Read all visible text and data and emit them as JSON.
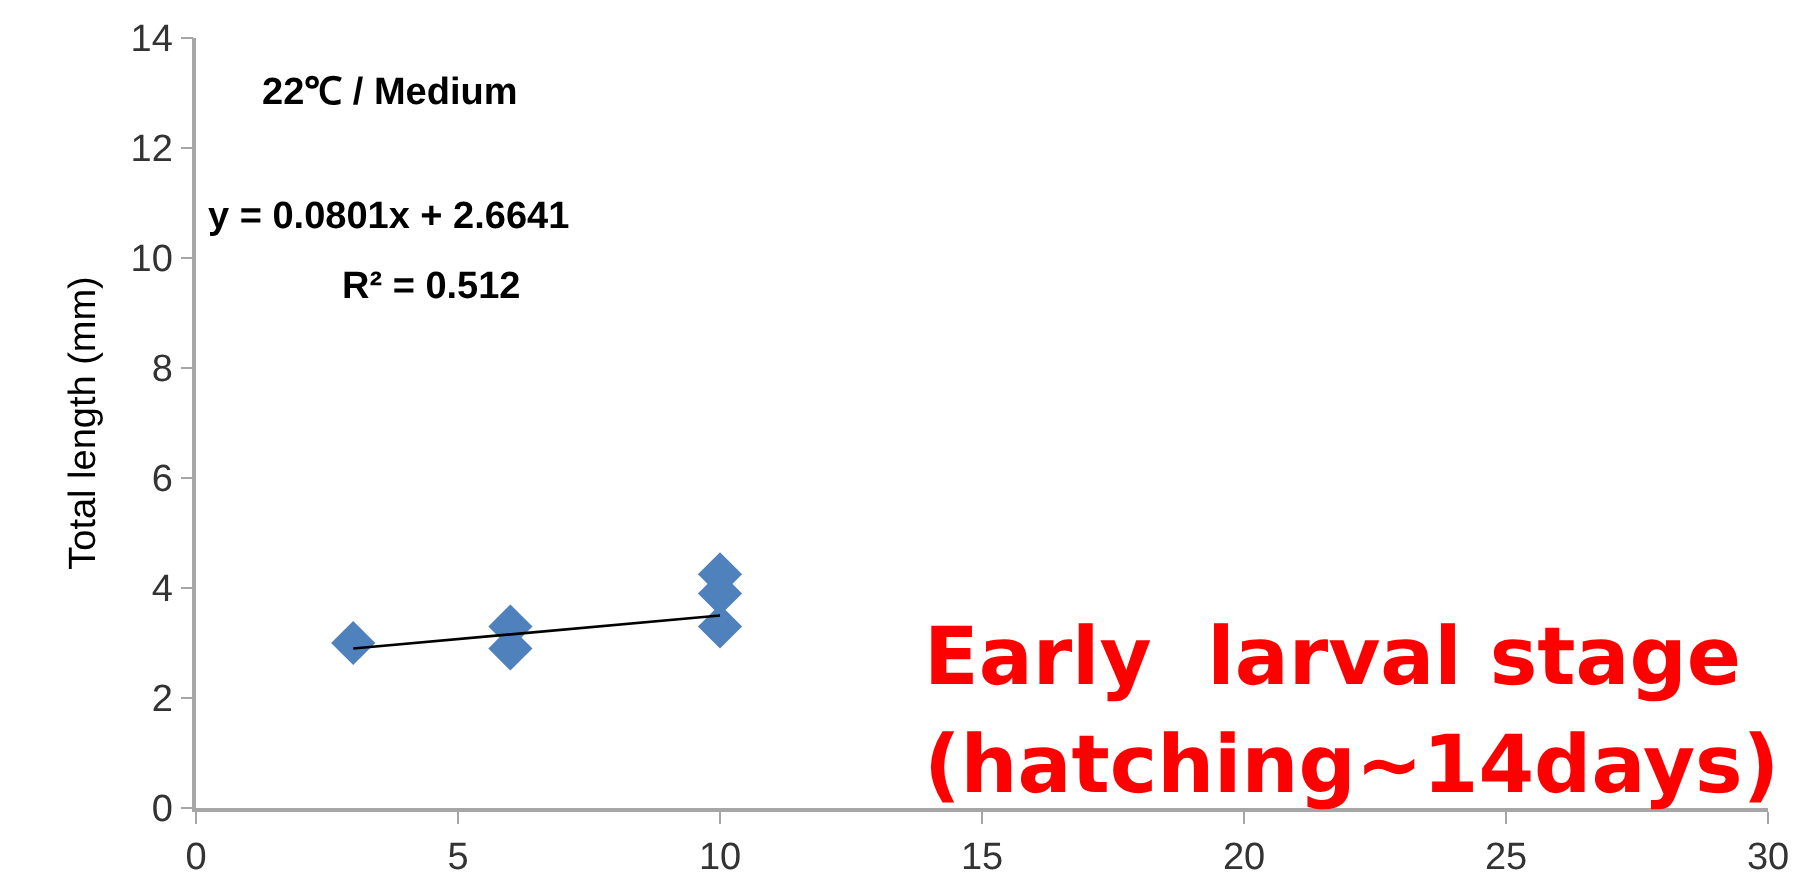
{
  "chart_data": {
    "type": "scatter",
    "ylabel": "Total length (mm)",
    "grid": false,
    "xlim": [
      0,
      30
    ],
    "xticks": [
      0,
      5,
      10,
      15,
      20,
      25,
      30
    ],
    "ylim": [
      0,
      14
    ],
    "yticks": [
      0,
      2,
      4,
      6,
      8,
      10,
      12,
      14
    ],
    "annotations": [
      "22℃ / Medium",
      "y = 0.0801x + 2.6641",
      "R² = 0.512",
      "Early  larval stage",
      "(hatching~14days)"
    ],
    "series": [
      {
        "marker": "diamond",
        "color": "#4f81bd",
        "x": [
          3,
          6,
          6,
          10,
          10,
          10
        ],
        "values": [
          3.0,
          2.9,
          3.3,
          3.3,
          3.9,
          4.25
        ]
      },
      {
        "type": "line",
        "marker": "none",
        "color": "#000000",
        "x": [
          3,
          10
        ],
        "values": [
          2.9,
          3.5
        ]
      }
    ]
  }
}
